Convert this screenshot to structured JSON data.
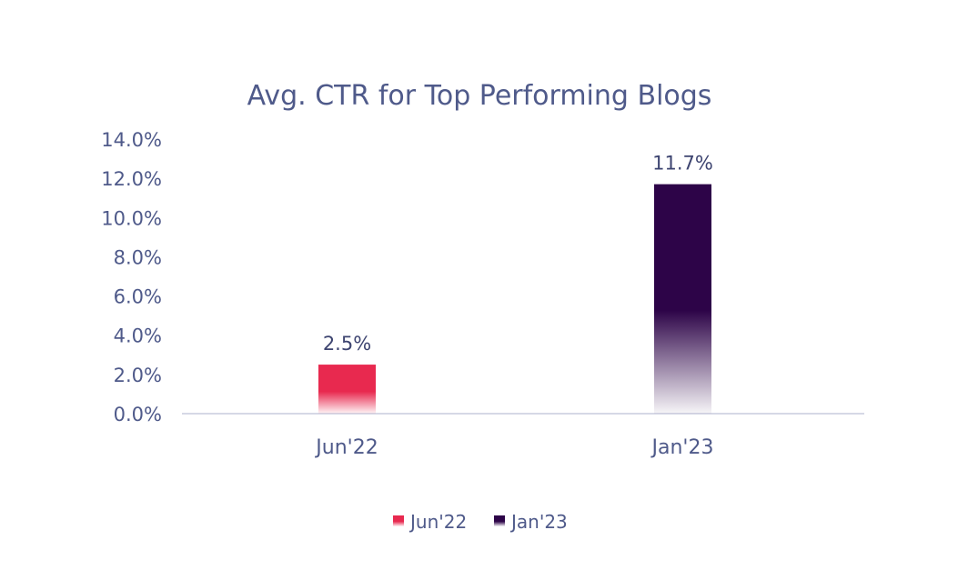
{
  "chart_data": {
    "type": "bar",
    "title": "Avg. CTR for Top Performing Blogs",
    "categories": [
      "Jun'22",
      "Jan'23"
    ],
    "values": [
      2.5,
      11.7
    ],
    "value_labels": [
      "2.5%",
      "11.7%"
    ],
    "ylim": [
      0,
      14
    ],
    "y_ticks": [
      0,
      2,
      4,
      6,
      8,
      10,
      12,
      14
    ],
    "y_tick_labels": [
      "0.0%",
      "2.0%",
      "4.0%",
      "6.0%",
      "8.0%",
      "10.0%",
      "12.0%",
      "14.0%"
    ],
    "xlabel": "",
    "ylabel": "",
    "grid": false,
    "legend": {
      "placement": "bottom",
      "entries": [
        "Jun'22",
        "Jan'23"
      ]
    },
    "colors": [
      "#e8294f",
      "#2d0448"
    ]
  }
}
